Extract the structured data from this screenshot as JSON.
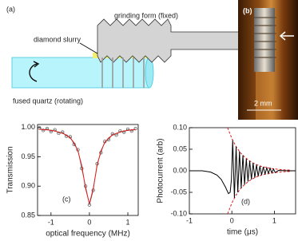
{
  "panel_a": {
    "label": "(a)",
    "form_label": "grinding form (fixed)",
    "slurry_label": "diamond slurry",
    "quartz_label": "fused quartz (rotating)"
  },
  "panel_b": {
    "label": "(b)",
    "scale_label": "2 mm"
  },
  "chart_data": [
    {
      "type": "line",
      "panel_label": "(c)",
      "xlabel": "optical frequency (MHz)",
      "ylabel": "Transmission",
      "xlim": [
        -1.35,
        1.27
      ],
      "ylim": [
        0.85,
        1.005
      ],
      "xticks": [
        -1,
        0,
        1
      ],
      "yticks": [
        {
          "value": 0.85,
          "label": "0.85"
        },
        {
          "value": 0.9,
          "label": "0.90"
        },
        {
          "value": 0.95,
          "label": "0.95"
        },
        {
          "value": 1.0,
          "label": "1.00"
        }
      ],
      "series": [
        {
          "style": "markers",
          "color": "#555555",
          "x": [
            -1.3,
            -1.2,
            -1.1,
            -1.0,
            -0.9,
            -0.8,
            -0.7,
            -0.6,
            -0.5,
            -0.4,
            -0.3,
            -0.2,
            -0.1,
            0.0,
            0.1,
            0.2,
            0.3,
            0.4,
            0.5,
            0.6,
            0.7,
            0.8,
            0.9,
            1.0,
            1.1,
            1.2
          ],
          "values": [
            0.999,
            0.995,
            0.998,
            0.993,
            0.996,
            0.99,
            0.992,
            0.985,
            0.984,
            0.971,
            0.962,
            0.93,
            0.9,
            0.868,
            0.893,
            0.938,
            0.957,
            0.976,
            0.979,
            0.989,
            0.987,
            0.994,
            0.992,
            0.997,
            0.994,
            0.998
          ]
        },
        {
          "style": "line",
          "color": "#e02020",
          "x": [
            -1.3,
            -1.2,
            -1.1,
            -1.0,
            -0.9,
            -0.8,
            -0.7,
            -0.6,
            -0.5,
            -0.4,
            -0.3,
            -0.2,
            -0.1,
            0.0,
            0.1,
            0.2,
            0.3,
            0.4,
            0.5,
            0.6,
            0.7,
            0.8,
            0.9,
            1.0,
            1.1,
            1.2
          ],
          "values": [
            0.997,
            0.996,
            0.996,
            0.995,
            0.994,
            0.992,
            0.99,
            0.987,
            0.982,
            0.974,
            0.96,
            0.935,
            0.896,
            0.87,
            0.896,
            0.935,
            0.96,
            0.974,
            0.982,
            0.987,
            0.99,
            0.992,
            0.994,
            0.995,
            0.996,
            0.996
          ]
        }
      ]
    },
    {
      "type": "line",
      "panel_label": "(d)",
      "xlabel": "time (μs)",
      "ylabel": "Photocurrent (arb)",
      "xlim": [
        -1,
        1.5
      ],
      "ylim": [
        -0.1,
        0.1
      ],
      "xticks": [
        -1,
        0,
        1
      ],
      "yticks": [
        {
          "value": -0.1,
          "label": "-0.10"
        },
        {
          "value": -0.05,
          "label": "-0.05"
        },
        {
          "value": 0,
          "label": "0.00"
        },
        {
          "value": 0.05,
          "label": "0.05"
        },
        {
          "value": 0.1,
          "label": "0.10"
        }
      ],
      "series": [
        {
          "style": "dashed",
          "color": "#e02020",
          "x": [
            -0.1,
            0,
            0.1,
            0.2,
            0.3,
            0.4,
            0.5,
            0.6,
            0.7,
            0.8,
            0.9,
            1.0,
            1.2,
            1.4
          ],
          "values": [
            0.1,
            0.075,
            0.056,
            0.042,
            0.032,
            0.024,
            0.018,
            0.0135,
            0.01,
            0.0076,
            0.0057,
            0.0043,
            0.0024,
            0.0014
          ]
        },
        {
          "style": "dashed",
          "color": "#e02020",
          "x": [
            -0.1,
            0,
            0.1,
            0.2,
            0.3,
            0.4,
            0.5,
            0.6,
            0.7,
            0.8,
            0.9,
            1.0,
            1.2,
            1.4
          ],
          "values": [
            -0.1,
            -0.075,
            -0.056,
            -0.042,
            -0.032,
            -0.024,
            -0.018,
            -0.0135,
            -0.01,
            -0.0076,
            -0.0057,
            -0.0043,
            -0.0024,
            -0.0014
          ]
        },
        {
          "style": "line",
          "color": "#000000",
          "x": [
            -1,
            -0.7,
            -0.5,
            -0.35,
            -0.25,
            -0.15,
            -0.08,
            -0.04,
            -0.01,
            0.02,
            0.06,
            0.1,
            0.14,
            0.18,
            0.22,
            0.26,
            0.3,
            0.34,
            0.38,
            0.42,
            0.46,
            0.5,
            0.54,
            0.58,
            0.62,
            0.66,
            0.7,
            0.74,
            0.78,
            0.82,
            0.86,
            0.9,
            0.94,
            0.98,
            1.02,
            1.1,
            1.3,
            1.5
          ],
          "values": [
            0,
            0,
            -0.003,
            -0.01,
            -0.02,
            -0.038,
            -0.053,
            -0.05,
            -0.02,
            0.071,
            -0.063,
            0.056,
            -0.05,
            0.045,
            -0.04,
            0.036,
            -0.032,
            0.028,
            -0.025,
            0.023,
            -0.02,
            0.018,
            -0.016,
            0.014,
            -0.013,
            0.011,
            -0.01,
            0.009,
            -0.008,
            0.007,
            -0.006,
            0.006,
            -0.005,
            0.004,
            -0.004,
            0.001,
            0,
            0
          ]
        }
      ]
    }
  ]
}
